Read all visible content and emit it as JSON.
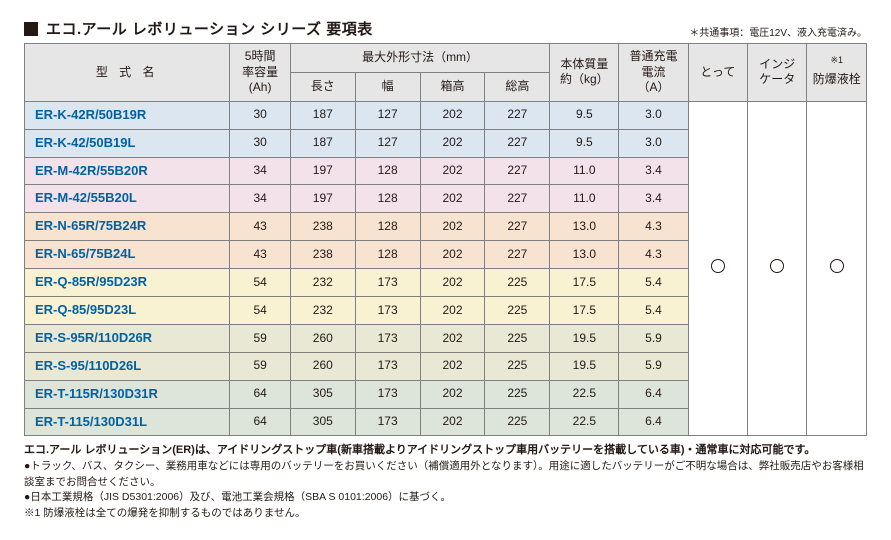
{
  "title": "エコ.アール レボリューション シリーズ 要項表",
  "note_top": "＊共通事項：電圧12V、液入充電済み。",
  "headers": {
    "model": "型 式 名",
    "capacity": "5時間\n率容量\n(Ah)",
    "dim_group": "最大外形寸法（mm）",
    "dim_len": "長さ",
    "dim_w": "幅",
    "dim_boxh": "箱高",
    "dim_totalh": "総高",
    "mass": "本体質量\n約（kg）",
    "charge": "普通充電\n電流\n（A）",
    "handle": "とって",
    "indicator": "インジ\nケータ",
    "plug": "防爆液栓",
    "plug_note": "※1"
  },
  "row_colors": {
    "group1": "#dbe6f1",
    "group2": "#f4e2ea",
    "group3": "#f8e2d0",
    "group4": "#f9f2d2",
    "group5": "#e9e8d5",
    "group6": "#dde5da",
    "marks_bg": "#ffffff"
  },
  "rows": [
    {
      "model": "ER-K-42R/50B19R",
      "cap": "30",
      "len": "187",
      "w": "127",
      "boxh": "202",
      "totalh": "227",
      "mass": "9.5",
      "chg": "3.0",
      "grp": "group1"
    },
    {
      "model": "ER-K-42/50B19L",
      "cap": "30",
      "len": "187",
      "w": "127",
      "boxh": "202",
      "totalh": "227",
      "mass": "9.5",
      "chg": "3.0",
      "grp": "group1"
    },
    {
      "model": "ER-M-42R/55B20R",
      "cap": "34",
      "len": "197",
      "w": "128",
      "boxh": "202",
      "totalh": "227",
      "mass": "11.0",
      "chg": "3.4",
      "grp": "group2"
    },
    {
      "model": "ER-M-42/55B20L",
      "cap": "34",
      "len": "197",
      "w": "128",
      "boxh": "202",
      "totalh": "227",
      "mass": "11.0",
      "chg": "3.4",
      "grp": "group2"
    },
    {
      "model": "ER-N-65R/75B24R",
      "cap": "43",
      "len": "238",
      "w": "128",
      "boxh": "202",
      "totalh": "227",
      "mass": "13.0",
      "chg": "4.3",
      "grp": "group3"
    },
    {
      "model": "ER-N-65/75B24L",
      "cap": "43",
      "len": "238",
      "w": "128",
      "boxh": "202",
      "totalh": "227",
      "mass": "13.0",
      "chg": "4.3",
      "grp": "group3"
    },
    {
      "model": "ER-Q-85R/95D23R",
      "cap": "54",
      "len": "232",
      "w": "173",
      "boxh": "202",
      "totalh": "225",
      "mass": "17.5",
      "chg": "5.4",
      "grp": "group4"
    },
    {
      "model": "ER-Q-85/95D23L",
      "cap": "54",
      "len": "232",
      "w": "173",
      "boxh": "202",
      "totalh": "225",
      "mass": "17.5",
      "chg": "5.4",
      "grp": "group4"
    },
    {
      "model": "ER-S-95R/110D26R",
      "cap": "59",
      "len": "260",
      "w": "173",
      "boxh": "202",
      "totalh": "225",
      "mass": "19.5",
      "chg": "5.9",
      "grp": "group5"
    },
    {
      "model": "ER-S-95/110D26L",
      "cap": "59",
      "len": "260",
      "w": "173",
      "boxh": "202",
      "totalh": "225",
      "mass": "19.5",
      "chg": "5.9",
      "grp": "group5"
    },
    {
      "model": "ER-T-115R/130D31R",
      "cap": "64",
      "len": "305",
      "w": "173",
      "boxh": "202",
      "totalh": "225",
      "mass": "22.5",
      "chg": "6.4",
      "grp": "group6"
    },
    {
      "model": "ER-T-115/130D31L",
      "cap": "64",
      "len": "305",
      "w": "173",
      "boxh": "202",
      "totalh": "225",
      "mass": "22.5",
      "chg": "6.4",
      "grp": "group6"
    }
  ],
  "marks": {
    "handle": "○",
    "indicator": "○",
    "plug": "○"
  },
  "footnotes": {
    "lead": "エコ.アール レボリューション(ER)は、アイドリングストップ車(新車搭載よりアイドリングストップ車用バッテリーを搭載している車)・通常車に対応可能です。",
    "b1": "トラック、バス、タクシー、業務用車などには専用のバッテリーをお買いください（補償適用外となります）。用途に適したバッテリーがご不明な場合は、弊社販売店やお客様相談室までお問合せください。",
    "b2": "日本工業規格（JIS D5301:2006）及び、電池工業会規格（SBA S 0101:2006）に基づく。",
    "n1": "※1 防爆液栓は全ての爆発を抑制するものではありません。"
  }
}
